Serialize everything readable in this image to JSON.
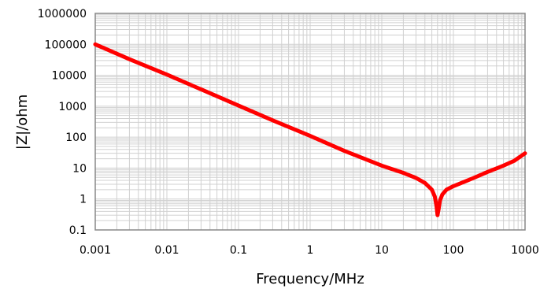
{
  "chart_data": {
    "type": "line",
    "title": "",
    "xlabel": "Frequency/MHz",
    "ylabel": "|Z|/ohm",
    "x_scale": "log",
    "y_scale": "log",
    "xlim": [
      0.001,
      1000
    ],
    "ylim": [
      0.1,
      1000000
    ],
    "x_ticks": [
      "0.001",
      "0.01",
      "0.1",
      "1",
      "10",
      "100",
      "1000"
    ],
    "y_ticks": [
      "0.1",
      "1",
      "10",
      "100",
      "1000",
      "10000",
      "100000",
      "1000000"
    ],
    "grid": true,
    "series": [
      {
        "color": "#ff0000",
        "x": [
          0.001,
          0.003,
          0.01,
          0.03,
          0.1,
          0.3,
          1,
          3,
          10,
          20,
          30,
          40,
          50,
          55,
          58,
          60,
          62,
          65,
          70,
          80,
          100,
          150,
          200,
          300,
          500,
          700,
          1000
        ],
        "y": [
          100000,
          33000,
          10500,
          3500,
          1050,
          350,
          110,
          36,
          12,
          7,
          4.8,
          3.3,
          2.0,
          1.2,
          0.6,
          0.3,
          0.45,
          0.9,
          1.4,
          2.0,
          2.6,
          3.8,
          5.0,
          7.5,
          12,
          17,
          30
        ]
      }
    ]
  },
  "colors": {
    "plot_border": "#888888",
    "grid": "#d0d0d0",
    "series": "#ff0000"
  }
}
